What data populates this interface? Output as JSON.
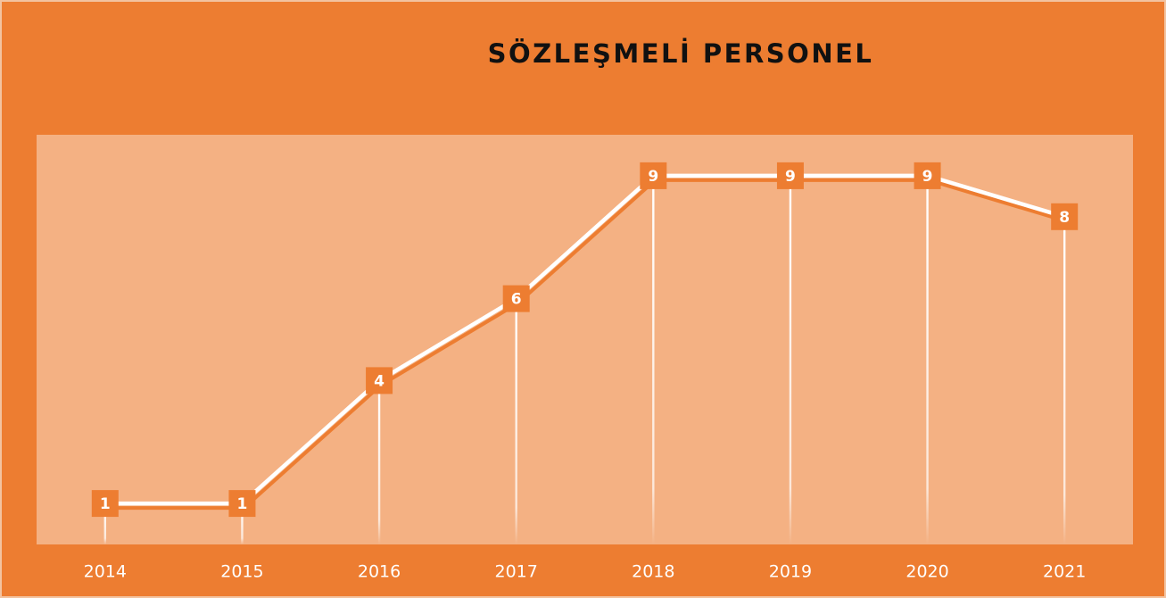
{
  "chart_data": {
    "type": "line",
    "title": "SÖZLEŞMELİ PERSONEL",
    "categories": [
      "2014",
      "2015",
      "2016",
      "2017",
      "2018",
      "2019",
      "2020",
      "2021"
    ],
    "values": [
      1,
      1,
      4,
      6,
      9,
      9,
      9,
      8
    ],
    "color": "#ffffff",
    "marker_color": "#ED7D31",
    "ylim": [
      0,
      10
    ]
  }
}
